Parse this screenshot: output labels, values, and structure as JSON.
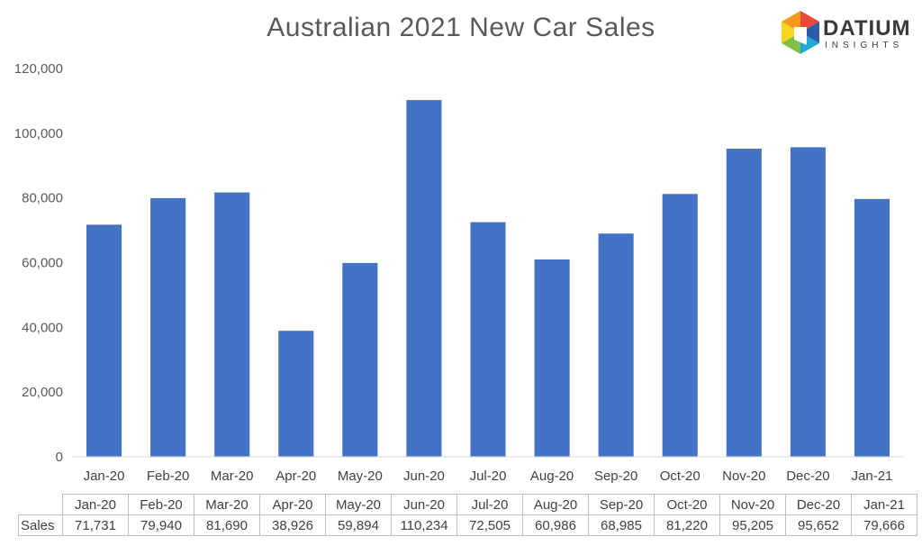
{
  "chart_data": {
    "type": "bar",
    "title": "Australian 2021 New Car Sales",
    "categories": [
      "Jan-20",
      "Feb-20",
      "Mar-20",
      "Apr-20",
      "May-20",
      "Jun-20",
      "Jul-20",
      "Aug-20",
      "Sep-20",
      "Oct-20",
      "Nov-20",
      "Dec-20",
      "Jan-21"
    ],
    "series": [
      {
        "name": "Sales",
        "values": [
          71731,
          79940,
          81690,
          38926,
          59894,
          110234,
          72505,
          60986,
          68985,
          81220,
          95205,
          95652,
          79666
        ]
      }
    ],
    "y_ticks": [
      "0",
      "20,000",
      "40,000",
      "60,000",
      "80,000",
      "100,000",
      "120,000"
    ],
    "ylim": [
      0,
      120000
    ],
    "grid": false,
    "bar_color": "#4472C4",
    "data_table": {
      "row_label": "Sales",
      "values": [
        "71,731",
        "79,940",
        "81,690",
        "38,926",
        "59,894",
        "110,234",
        "72,505",
        "60,986",
        "68,985",
        "81,220",
        "95,205",
        "95,652",
        "79,666"
      ]
    }
  },
  "logo": {
    "word": "DATIUM",
    "sub": "INSIGHTS"
  }
}
